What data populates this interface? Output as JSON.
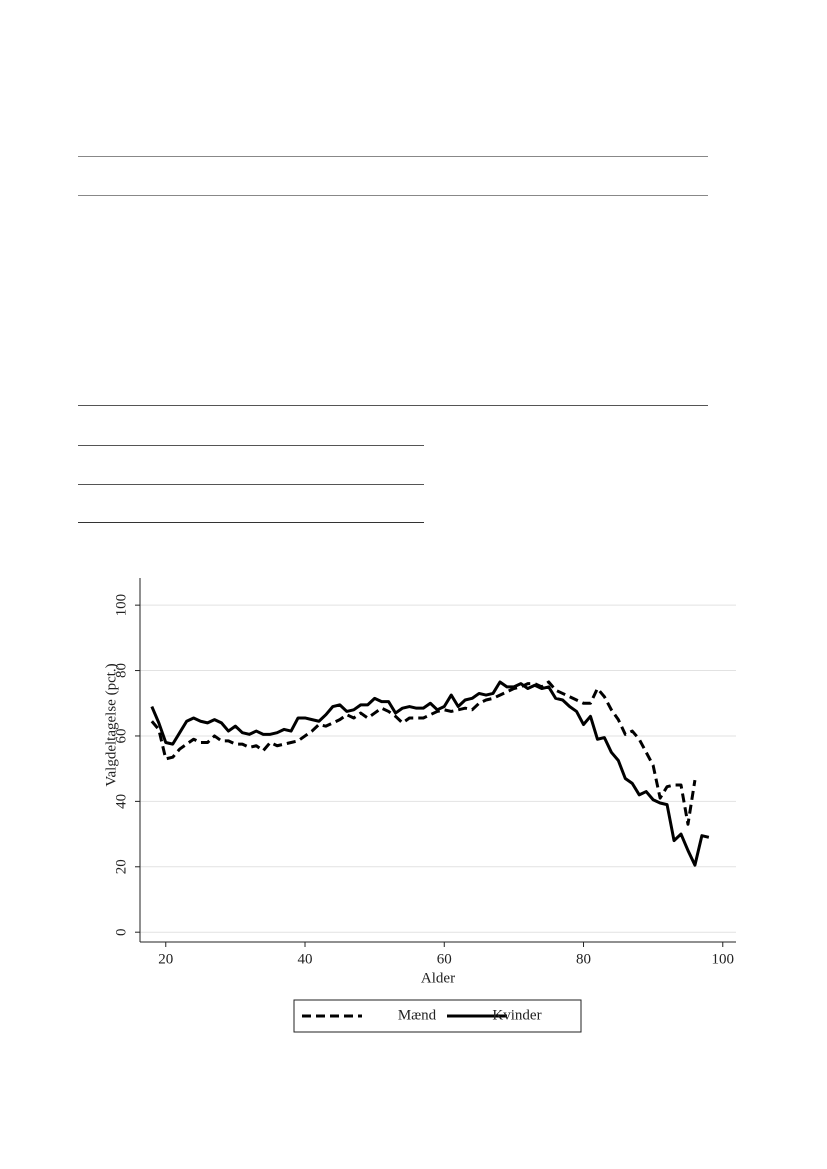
{
  "chart_data": {
    "type": "line",
    "x_label": "Alder",
    "y_label": "Valgdeltagelse (pct.)",
    "x": [
      18,
      19,
      20,
      21,
      22,
      23,
      24,
      25,
      26,
      27,
      28,
      29,
      30,
      31,
      32,
      33,
      34,
      35,
      36,
      37,
      38,
      39,
      40,
      41,
      42,
      43,
      44,
      45,
      46,
      47,
      48,
      49,
      50,
      51,
      52,
      53,
      54,
      55,
      56,
      57,
      58,
      59,
      60,
      61,
      62,
      63,
      64,
      65,
      66,
      67,
      68,
      69,
      70,
      71,
      72,
      73,
      74,
      75,
      76,
      77,
      78,
      79,
      80,
      81,
      82,
      83,
      84,
      85,
      86,
      87,
      88,
      89,
      90,
      91,
      92,
      93,
      94,
      95,
      96,
      97,
      98
    ],
    "series": [
      {
        "name": "Mænd",
        "color": "#000000",
        "dash": "dashed",
        "values": [
          64.5,
          62,
          53,
          53.5,
          56,
          57.5,
          59,
          58,
          58,
          60,
          58.5,
          58.5,
          57.5,
          57.5,
          56.5,
          57,
          55.5,
          58,
          57,
          57.5,
          58,
          58.5,
          60,
          61.5,
          63.5,
          63,
          64,
          65,
          66.5,
          65.5,
          67,
          65.5,
          67,
          68.5,
          67.5,
          66,
          64,
          65.5,
          65.5,
          65.5,
          66.5,
          67.5,
          68,
          67.5,
          68,
          68.5,
          68,
          70,
          71,
          71.5,
          72.5,
          73.5,
          74.5,
          75,
          76,
          76,
          75,
          76.5,
          74,
          73,
          72,
          71,
          70,
          70,
          74.5,
          72,
          68,
          65,
          60.5,
          61.5,
          59,
          55,
          51,
          41,
          44.5,
          45,
          45,
          33,
          46.5,
          null,
          null
        ]
      },
      {
        "name": "Kvinder",
        "color": "#000000",
        "dash": "solid",
        "values": [
          69,
          64,
          58,
          57.5,
          61,
          64.5,
          65.5,
          64.5,
          64,
          65,
          64,
          61.5,
          63,
          61,
          60.5,
          61.5,
          60.5,
          60.5,
          61,
          62,
          61.5,
          65.5,
          65.5,
          65,
          64.5,
          66.5,
          69,
          69.5,
          67.5,
          68,
          69.5,
          69.5,
          71.5,
          70.5,
          70.5,
          67,
          68.5,
          69,
          68.5,
          68.5,
          70,
          68,
          69,
          72.5,
          69,
          71,
          71.5,
          73,
          72.5,
          73,
          76.5,
          75,
          75,
          76,
          74.5,
          75.5,
          74.5,
          75,
          71.5,
          71,
          69,
          67.5,
          63.5,
          66,
          59,
          59.5,
          55,
          52.5,
          47,
          45.5,
          42,
          43,
          40.5,
          39.5,
          39,
          28,
          30,
          25,
          20.5,
          29.5,
          29
        ]
      }
    ],
    "xlim": [
      16.3,
      101.9
    ],
    "ylim": [
      -3,
      108.3
    ],
    "xticks": [
      20,
      40,
      60,
      80,
      100
    ],
    "yticks": [
      0,
      20,
      40,
      60,
      80,
      100
    ],
    "grid": true
  }
}
